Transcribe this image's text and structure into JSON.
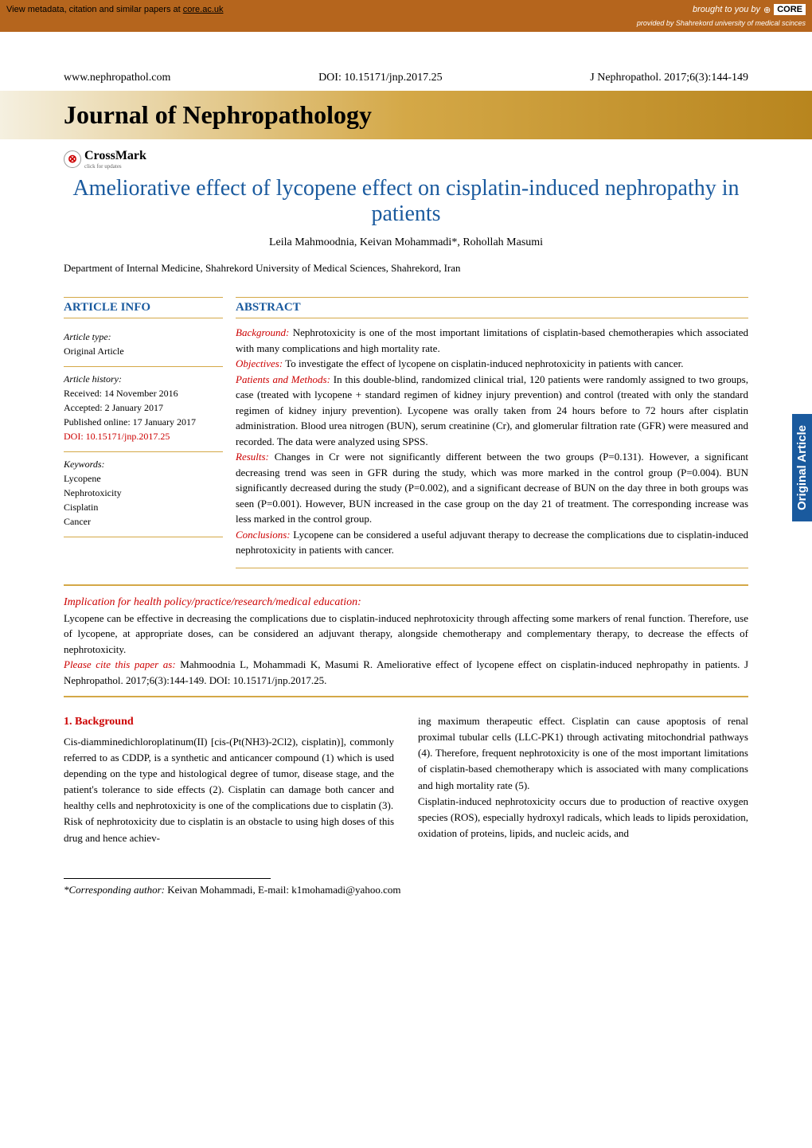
{
  "top_bar": {
    "metadata_text": "View metadata, citation and similar papers at ",
    "metadata_link": "core.ac.uk",
    "brought_by": "brought to you by",
    "core": "CORE",
    "provided_by": "provided by Shahrekord university of medical scinces"
  },
  "header": {
    "website": "www.nephropathol.com",
    "doi": "DOI: 10.15171/jnp.2017.25",
    "citation": "J Nephropathol. 2017;6(3):144-149",
    "journal_name": "Journal of Nephropathology",
    "crossmark": "CrossMark",
    "crossmark_sub": "click for updates"
  },
  "article": {
    "title": "Ameliorative effect of lycopene effect on cisplatin-induced nephropathy in patients",
    "authors": "Leila Mahmoodnia, Keivan Mohammadi*, Rohollah Masumi",
    "department": "Department of Internal Medicine, Shahrekord University of Medical Sciences, Shahrekord, Iran"
  },
  "article_info": {
    "heading": "ARTICLE INFO",
    "type_label": "Article type:",
    "type_value": "Original Article",
    "history_label": "Article history:",
    "received": "Received: 14 November 2016",
    "accepted": "Accepted: 2 January 2017",
    "published": "Published online: 17 January 2017",
    "doi": "DOI: 10.15171/jnp.2017.25",
    "keywords_label": "Keywords:",
    "keywords": [
      "Lycopene",
      "Nephrotoxicity",
      "Cisplatin",
      "Cancer"
    ]
  },
  "abstract": {
    "heading": "ABSTRACT",
    "background_label": "Background:",
    "background": " Nephrotoxicity is one of the most important limitations of cisplatin-based chemotherapies which associated with many complications and high mortality rate.",
    "objectives_label": "Objectives:",
    "objectives": " To investigate the effect of lycopene on cisplatin-induced nephrotoxicity in patients with cancer.",
    "methods_label": "Patients and Methods:",
    "methods": " In this double-blind, randomized clinical trial, 120 patients were randomly assigned to two groups, case (treated with lycopene + standard regimen of kidney injury prevention) and control (treated with only the standard regimen of kidney injury prevention). Lycopene was orally taken from 24 hours before to 72 hours after cisplatin administration. Blood urea nitrogen (BUN), serum creatinine (Cr), and glomerular filtration rate (GFR) were measured and recorded. The data were analyzed using SPSS.",
    "results_label": "Results:",
    "results": " Changes in Cr were not significantly different between the two groups (P=0.131). However, a significant decreasing trend was seen in GFR during the study, which was more marked in the control group (P=0.004). BUN significantly decreased during the study (P=0.002), and a significant decrease of BUN on the day three in both groups was seen (P=0.001). However, BUN increased in the case group on the day 21 of treatment. The corresponding increase was less marked in the control group.",
    "conclusions_label": "Conclusions:",
    "conclusions": " Lycopene can be considered a useful adjuvant therapy to decrease the complications due to cisplatin-induced nephrotoxicity in patients with cancer."
  },
  "side_tab": "Original Article",
  "implication": {
    "title": "Implication for health policy/practice/research/medical education:",
    "text": "Lycopene can be effective in decreasing the complications due to cisplatin-induced nephrotoxicity through affecting some markers of renal function. Therefore, use of lycopene, at appropriate doses, can be considered an adjuvant therapy, alongside chemotherapy and complementary therapy, to decrease the effects of nephrotoxicity.",
    "cite_label": "Please cite this paper as:",
    "cite": " Mahmoodnia L, Mohammadi K, Masumi R. Ameliorative effect of lycopene effect on cisplatin-induced nephropathy in patients. J Nephropathol. 2017;6(3):144-149. DOI: 10.15171/jnp.2017.25."
  },
  "body": {
    "section_title": "1. Background",
    "col1": "Cis-diamminedichloroplatinum(II) [cis-(Pt(NH3)-2Cl2), cisplatin)], commonly referred to as CDDP, is a synthetic and anticancer compound (1) which is used depending on the type and histological degree of tumor, disease stage, and the patient's tolerance to side effects (2). Cisplatin can damage both cancer and healthy cells and nephrotoxicity is one of the complications due to cisplatin (3).\nRisk of nephrotoxicity due to cisplatin is an obstacle to using high doses of this drug and hence achiev-",
    "col2": "ing maximum therapeutic effect. Cisplatin can cause apoptosis of renal proximal tubular cells (LLC-PK1) through activating mitochondrial pathways (4). Therefore, frequent nephrotoxicity is one of the most important limitations of cisplatin-based chemotherapy which is associated with many complications and high mortality rate (5).\nCisplatin-induced nephrotoxicity occurs due to production of reactive oxygen species (ROS), especially hydroxyl radicals, which leads to lipids peroxidation, oxidation of proteins, lipids, and nucleic acids, and"
  },
  "footer": {
    "label": "*Corresponding author:",
    "text": " Keivan Mohammadi, E-mail: k1mohamadi@yahoo.com"
  },
  "colors": {
    "brown": "#b5651d",
    "gold": "#d4a847",
    "blue": "#1a5a9e",
    "red": "#c00"
  }
}
